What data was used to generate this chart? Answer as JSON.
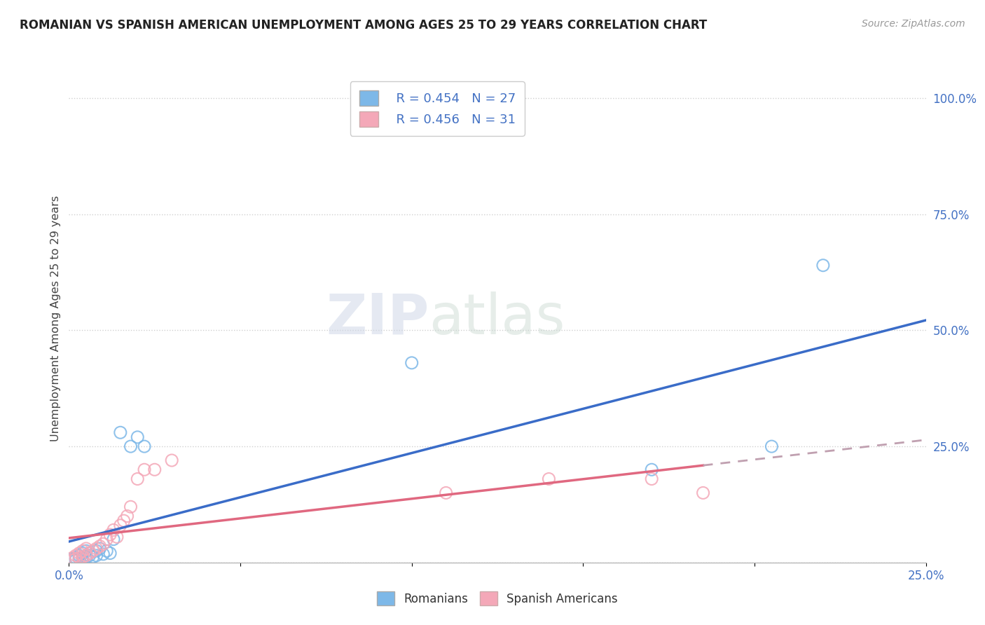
{
  "title": "ROMANIAN VS SPANISH AMERICAN UNEMPLOYMENT AMONG AGES 25 TO 29 YEARS CORRELATION CHART",
  "source": "Source: ZipAtlas.com",
  "ylabel": "Unemployment Among Ages 25 to 29 years",
  "xlim": [
    0.0,
    0.25
  ],
  "ylim": [
    0.0,
    1.05
  ],
  "ytick_vals": [
    0.0,
    0.25,
    0.5,
    0.75,
    1.0
  ],
  "ytick_labels": [
    "",
    "25.0%",
    "50.0%",
    "75.0%",
    "100.0%"
  ],
  "xtick_vals": [
    0.0,
    0.05,
    0.1,
    0.15,
    0.2,
    0.25
  ],
  "xtick_labels": [
    "0.0%",
    "",
    "",
    "",
    "",
    "25.0%"
  ],
  "romanian_r": "R = 0.454",
  "romanian_n": "N = 27",
  "spanish_r": "R = 0.456",
  "spanish_n": "N = 31",
  "blue_scatter_color": "#7db8e8",
  "pink_scatter_color": "#f4a8b8",
  "blue_line_color": "#3a6cc8",
  "pink_line_color": "#e06880",
  "watermark_zip": "ZIP",
  "watermark_atlas": "atlas",
  "romanian_x": [
    0.001,
    0.002,
    0.002,
    0.003,
    0.003,
    0.004,
    0.004,
    0.005,
    0.005,
    0.006,
    0.006,
    0.007,
    0.008,
    0.008,
    0.009,
    0.01,
    0.011,
    0.012,
    0.013,
    0.015,
    0.018,
    0.02,
    0.022,
    0.1,
    0.17,
    0.205,
    0.22
  ],
  "romanian_y": [
    0.008,
    0.005,
    0.01,
    0.008,
    0.015,
    0.01,
    0.02,
    0.012,
    0.025,
    0.015,
    0.02,
    0.012,
    0.015,
    0.025,
    0.03,
    0.018,
    0.025,
    0.02,
    0.05,
    0.28,
    0.25,
    0.27,
    0.25,
    0.43,
    0.2,
    0.25,
    0.64
  ],
  "spanish_x": [
    0.001,
    0.001,
    0.002,
    0.002,
    0.003,
    0.003,
    0.004,
    0.004,
    0.005,
    0.005,
    0.006,
    0.007,
    0.008,
    0.009,
    0.01,
    0.011,
    0.012,
    0.013,
    0.014,
    0.015,
    0.016,
    0.017,
    0.018,
    0.02,
    0.022,
    0.025,
    0.03,
    0.11,
    0.14,
    0.17,
    0.185
  ],
  "spanish_y": [
    0.005,
    0.01,
    0.008,
    0.015,
    0.01,
    0.02,
    0.012,
    0.025,
    0.015,
    0.03,
    0.02,
    0.025,
    0.03,
    0.035,
    0.04,
    0.05,
    0.06,
    0.07,
    0.055,
    0.08,
    0.09,
    0.1,
    0.12,
    0.18,
    0.2,
    0.2,
    0.22,
    0.15,
    0.18,
    0.18,
    0.15
  ]
}
